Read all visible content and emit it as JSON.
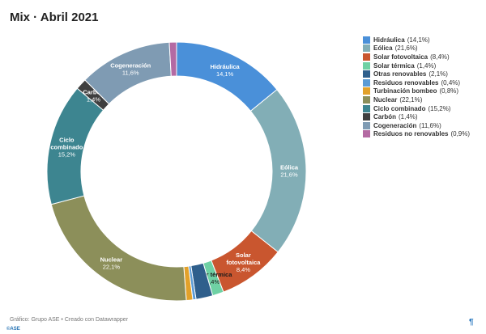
{
  "chart_data": {
    "type": "pie",
    "title": "Mix · Abril 2021",
    "unit": "%",
    "legend_position": "right",
    "slices": [
      {
        "name": "Hidráulica",
        "value": 14.1,
        "label": "14,1%",
        "color": "#4a90d9"
      },
      {
        "name": "Eólica",
        "value": 21.6,
        "label": "21,6%",
        "color": "#82aeb6"
      },
      {
        "name": "Solar fotovoltaica",
        "value": 8.4,
        "label": "8,4%",
        "color": "#c9562f"
      },
      {
        "name": "Solar térmica",
        "value": 1.4,
        "label": "1,4%",
        "color": "#6fd1a4"
      },
      {
        "name": "Otras renovables",
        "value": 2.1,
        "label": "2,1%",
        "color": "#2f5f8c"
      },
      {
        "name": "Residuos renovables",
        "value": 0.4,
        "label": "0,4%",
        "color": "#5b9bd5"
      },
      {
        "name": "Turbinación bombeo",
        "value": 0.8,
        "label": "0,8%",
        "color": "#e2a12a"
      },
      {
        "name": "Nuclear",
        "value": 22.1,
        "label": "22,1%",
        "color": "#8c8f5a"
      },
      {
        "name": "Ciclo combinado",
        "value": 15.2,
        "label": "15,2%",
        "color": "#3d8590"
      },
      {
        "name": "Carbón",
        "value": 1.4,
        "label": "1,4%",
        "color": "#3f3f3f"
      },
      {
        "name": "Cogeneración",
        "value": 11.6,
        "label": "11,6%",
        "color": "#7f9bb3"
      },
      {
        "name": "Residuos no renovables",
        "value": 0.9,
        "label": "0,9%",
        "color": "#b46aa3"
      }
    ],
    "slice_labels_shown": [
      "Hidráulica",
      "Eólica",
      "Solar fotovoltaica",
      "Solar térmica",
      "Nuclear",
      "Ciclo combinado",
      "Carbón",
      "Cogeneración"
    ]
  },
  "footer": {
    "source": "Gráfico: Grupo ASE • Creado con Datawrapper"
  },
  "brand": {
    "mark": "©ASE",
    "corner_icon": "¶"
  }
}
